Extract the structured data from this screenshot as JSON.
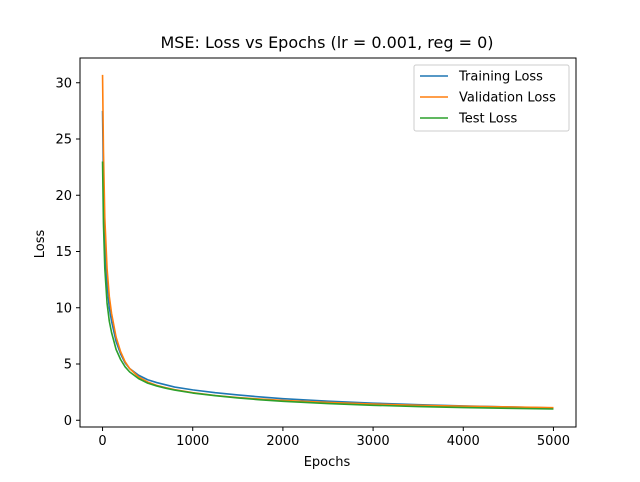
{
  "chart_data": {
    "type": "line",
    "title": "MSE: Loss vs Epochs (lr = 0.001, reg = 0)",
    "xlabel": "Epochs",
    "ylabel": "Loss",
    "xlim": [
      -250,
      5250
    ],
    "ylim": [
      -0.6,
      32.2
    ],
    "xticks": [
      0,
      1000,
      2000,
      3000,
      4000,
      5000
    ],
    "yticks": [
      0,
      5,
      10,
      15,
      20,
      25,
      30
    ],
    "legend_position": "top-right",
    "grid": false,
    "series": [
      {
        "name": "Training Loss",
        "color": "#1f77b4",
        "x": [
          0,
          10,
          25,
          50,
          75,
          100,
          150,
          200,
          250,
          300,
          400,
          500,
          600,
          700,
          800,
          1000,
          1250,
          1500,
          1750,
          2000,
          2500,
          3000,
          3500,
          4000,
          4500,
          5000
        ],
        "y": [
          27.5,
          21.0,
          16.0,
          12.0,
          10.0,
          8.8,
          7.0,
          5.9,
          5.1,
          4.6,
          4.0,
          3.6,
          3.35,
          3.15,
          2.95,
          2.7,
          2.45,
          2.25,
          2.07,
          1.92,
          1.7,
          1.52,
          1.38,
          1.27,
          1.18,
          1.1
        ]
      },
      {
        "name": "Validation Loss",
        "color": "#ff7f0e",
        "x": [
          0,
          10,
          25,
          50,
          75,
          100,
          150,
          200,
          250,
          300,
          400,
          500,
          600,
          700,
          800,
          1000,
          1250,
          1500,
          1750,
          2000,
          2500,
          3000,
          3500,
          4000,
          4500,
          5000
        ],
        "y": [
          30.7,
          24.0,
          18.0,
          13.5,
          11.0,
          9.5,
          7.4,
          6.1,
          5.2,
          4.6,
          3.85,
          3.4,
          3.1,
          2.9,
          2.72,
          2.45,
          2.2,
          2.02,
          1.88,
          1.76,
          1.58,
          1.44,
          1.33,
          1.25,
          1.18,
          1.12
        ]
      },
      {
        "name": "Test Loss",
        "color": "#2ca02c",
        "x": [
          0,
          10,
          25,
          50,
          75,
          100,
          150,
          200,
          250,
          300,
          400,
          500,
          600,
          700,
          800,
          1000,
          1250,
          1500,
          1750,
          2000,
          2500,
          3000,
          3500,
          4000,
          4500,
          5000
        ],
        "y": [
          23.0,
          17.5,
          13.5,
          10.4,
          8.8,
          7.8,
          6.3,
          5.4,
          4.75,
          4.3,
          3.7,
          3.3,
          3.05,
          2.85,
          2.68,
          2.42,
          2.18,
          1.98,
          1.82,
          1.68,
          1.48,
          1.33,
          1.22,
          1.13,
          1.06,
          1.0
        ]
      }
    ]
  }
}
